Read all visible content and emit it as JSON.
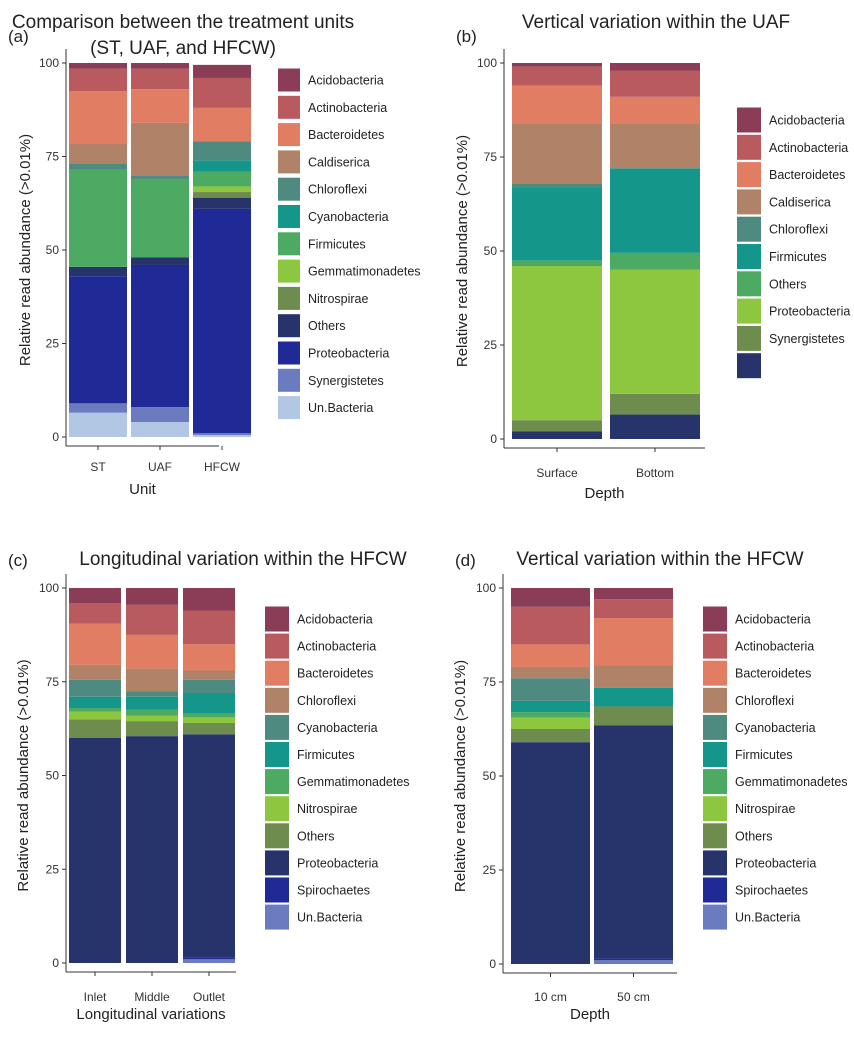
{
  "colors": {
    "Acidobacteria": "#8B3C57",
    "Actinobacteria": "#B85A5E",
    "Bacteroidetes": "#E07D62",
    "Caldiserica": "#B08268",
    "Chloroflexi": "#B08268",
    "Cyanobacteria": "#4F8A80",
    "Firmicutes": "#15968A",
    "Gemmatimonadetes": "#4CAA62",
    "Nitrospirae": "#8DC63F",
    "Others": "#6E8C4E",
    "Proteobacteria": "#27346B",
    "Synergistetes": "#6A7BBF",
    "Spirochaetes": "#202A96",
    "Un.Bacteria": "#B2C7E3"
  },
  "chart_data": [
    {
      "type": "bar",
      "stacked": true,
      "panel_label": "(a)",
      "title": "Comparison between the treatment units (ST, UAF, and HFCW)",
      "title_lines": [
        "Comparison between the treatment units",
        "(ST, UAF, and HFCW)"
      ],
      "xlabel": "Unit",
      "ylabel": "Relative read abundance (>0.01%)",
      "ylim": [
        0,
        100
      ],
      "yticks": [
        0,
        25,
        50,
        75,
        100
      ],
      "categories": [
        "ST",
        "UAF",
        "HFCW"
      ],
      "legend": [
        "Acidobacteria",
        "Actinobacteria",
        "Bacteroidetes",
        "Caldiserica",
        "Chloroflexi",
        "Cyanobacteria",
        "Firmicutes",
        "Gemmatimonadetes",
        "Nitrospirae",
        "Others",
        "Proteobacteria",
        "Synergistetes",
        "Un.Bacteria"
      ],
      "legend_colors": [
        "#8B3C57",
        "#B85A5E",
        "#E07D62",
        "#B08268",
        "#4F8A80",
        "#15968A",
        "#4CAA62",
        "#8DC63F",
        "#6E8C4E",
        "#27346B",
        "#202A96",
        "#6A7BBF",
        "#B2C7E3"
      ],
      "series": [
        {
          "name": "Un.Bacteria",
          "color": "#B2C7E3",
          "values": [
            6.5,
            4,
            0.5
          ]
        },
        {
          "name": "Synergistetes",
          "color": "#6A7BBF",
          "values": [
            2.5,
            4,
            0.5
          ]
        },
        {
          "name": "Proteobacteria",
          "color": "#202A96",
          "values": [
            34,
            38,
            60
          ]
        },
        {
          "name": "Others",
          "color": "#27346B",
          "values": [
            2.5,
            2,
            3
          ]
        },
        {
          "name": "Nitrospirae",
          "color": "#6E8C4E",
          "values": [
            0,
            0,
            1.5
          ]
        },
        {
          "name": "Gemmatimonadetes",
          "color": "#8DC63F",
          "values": [
            0,
            0,
            1.5
          ]
        },
        {
          "name": "Firmicutes",
          "color": "#4CAA62",
          "values": [
            26,
            21,
            4
          ]
        },
        {
          "name": "Cyanobacteria",
          "color": "#15968A",
          "values": [
            0,
            0,
            3
          ]
        },
        {
          "name": "Chloroflexi",
          "color": "#4F8A80",
          "values": [
            1.5,
            1,
            5
          ]
        },
        {
          "name": "Caldiserica",
          "color": "#B08268",
          "values": [
            5.5,
            14,
            0
          ]
        },
        {
          "name": "Bacteroidetes",
          "color": "#E07D62",
          "values": [
            14,
            9,
            9
          ]
        },
        {
          "name": "Actinobacteria",
          "color": "#B85A5E",
          "values": [
            6,
            5.5,
            8
          ]
        },
        {
          "name": "Acidobacteria",
          "color": "#8B3C57",
          "values": [
            1.5,
            1.5,
            3.5
          ]
        }
      ]
    },
    {
      "type": "bar",
      "stacked": true,
      "panel_label": "(b)",
      "title": "Vertical variation within the UAF",
      "title_lines": [
        "Vertical variation within the UAF"
      ],
      "xlabel": "Depth",
      "ylabel": "Relative read abundance (>0.01%)",
      "ylim": [
        0,
        100
      ],
      "yticks": [
        0,
        25,
        50,
        75,
        100
      ],
      "categories": [
        "Surface",
        "Bottom"
      ],
      "legend": [
        "Acidobacteria",
        "Actinobacteria",
        "Bacteroidetes",
        "Caldiserica",
        "Chloroflexi",
        "Firmicutes",
        "Others",
        "Proteobacteria",
        "Synergistetes",
        ""
      ],
      "legend_colors": [
        "#8B3C57",
        "#B85A5E",
        "#E07D62",
        "#B08268",
        "#4F8A80",
        "#15968A",
        "#4CAA62",
        "#8DC63F",
        "#6E8C4E",
        "#27346B"
      ],
      "series": [
        {
          "name": "",
          "color": "#27346B",
          "values": [
            2,
            6.5
          ]
        },
        {
          "name": "Synergistetes",
          "color": "#6E8C4E",
          "values": [
            3,
            5.5
          ]
        },
        {
          "name": "Proteobacteria",
          "color": "#8DC63F",
          "values": [
            41,
            33
          ]
        },
        {
          "name": "Others",
          "color": "#4CAA62",
          "values": [
            1.5,
            4.5
          ]
        },
        {
          "name": "Firmicutes",
          "color": "#15968A",
          "values": [
            19.5,
            22.5
          ]
        },
        {
          "name": "Chloroflexi",
          "color": "#4F8A80",
          "values": [
            1,
            0
          ]
        },
        {
          "name": "Caldiserica",
          "color": "#B08268",
          "values": [
            16,
            12
          ]
        },
        {
          "name": "Bacteroidetes",
          "color": "#E07D62",
          "values": [
            10,
            7
          ]
        },
        {
          "name": "Actinobacteria",
          "color": "#B85A5E",
          "values": [
            5,
            7
          ]
        },
        {
          "name": "Acidobacteria",
          "color": "#8B3C57",
          "values": [
            1,
            2
          ]
        }
      ]
    },
    {
      "type": "bar",
      "stacked": true,
      "panel_label": "(c)",
      "title": "Longitudinal variation within the HFCW",
      "title_lines": [
        "Longitudinal variation within the HFCW"
      ],
      "xlabel": "Longitudinal variations",
      "ylabel": "Relative read abundance (>0.01%)",
      "ylim": [
        0,
        100
      ],
      "yticks": [
        0,
        25,
        50,
        75,
        100
      ],
      "categories": [
        "Inlet",
        "Middle",
        "Outlet"
      ],
      "legend": [
        "Acidobacteria",
        "Actinobacteria",
        "Bacteroidetes",
        "Chloroflexi",
        "Cyanobacteria",
        "Firmicutes",
        "Gemmatimonadetes",
        "Nitrospirae",
        "Others",
        "Proteobacteria",
        "Spirochaetes",
        "Un.Bacteria"
      ],
      "legend_colors": [
        "#8B3C57",
        "#B85A5E",
        "#E07D62",
        "#B08268",
        "#4F8A80",
        "#15968A",
        "#4CAA62",
        "#8DC63F",
        "#6E8C4E",
        "#27346B",
        "#202A96",
        "#6A7BBF"
      ],
      "series": [
        {
          "name": "Un.Bacteria",
          "color": "#6A7BBF",
          "values": [
            0,
            0,
            1
          ]
        },
        {
          "name": "Spirochaetes",
          "color": "#202A96",
          "values": [
            0,
            0,
            0.5
          ]
        },
        {
          "name": "Proteobacteria",
          "color": "#27346B",
          "values": [
            60,
            60.5,
            59.5
          ]
        },
        {
          "name": "Others",
          "color": "#6E8C4E",
          "values": [
            5,
            4,
            3
          ]
        },
        {
          "name": "Nitrospirae",
          "color": "#8DC63F",
          "values": [
            2,
            1.5,
            1.5
          ]
        },
        {
          "name": "Gemmatimonadetes",
          "color": "#4CAA62",
          "values": [
            1,
            1.5,
            1
          ]
        },
        {
          "name": "Firmicutes",
          "color": "#15968A",
          "values": [
            3,
            3.5,
            5.5
          ]
        },
        {
          "name": "Cyanobacteria",
          "color": "#4F8A80",
          "values": [
            4.5,
            1.5,
            3.5
          ]
        },
        {
          "name": "Chloroflexi",
          "color": "#B08268",
          "values": [
            4,
            6,
            2.5
          ]
        },
        {
          "name": "Bacteroidetes",
          "color": "#E07D62",
          "values": [
            11,
            9,
            7
          ]
        },
        {
          "name": "Actinobacteria",
          "color": "#B85A5E",
          "values": [
            5.5,
            8,
            9
          ]
        },
        {
          "name": "Acidobacteria",
          "color": "#8B3C57",
          "values": [
            4,
            4.5,
            6
          ]
        }
      ]
    },
    {
      "type": "bar",
      "stacked": true,
      "panel_label": "(d)",
      "title": "Vertical variation within the HFCW",
      "title_lines": [
        "Vertical variation within the HFCW"
      ],
      "xlabel": "Depth",
      "ylabel": "Relative read abundance (>0.01%)",
      "ylim": [
        0,
        100
      ],
      "yticks": [
        0,
        25,
        50,
        75,
        100
      ],
      "categories": [
        "10 cm",
        "50 cm"
      ],
      "legend": [
        "Acidobacteria",
        "Actinobacteria",
        "Bacteroidetes",
        "Chloroflexi",
        "Cyanobacteria",
        "Firmicutes",
        "Gemmatimonadetes",
        "Nitrospirae",
        "Others",
        "Proteobacteria",
        "Spirochaetes",
        "Un.Bacteria"
      ],
      "legend_colors": [
        "#8B3C57",
        "#B85A5E",
        "#E07D62",
        "#B08268",
        "#4F8A80",
        "#15968A",
        "#4CAA62",
        "#8DC63F",
        "#6E8C4E",
        "#27346B",
        "#202A96",
        "#6A7BBF"
      ],
      "series": [
        {
          "name": "Un.Bacteria",
          "color": "#6A7BBF",
          "values": [
            0,
            1
          ]
        },
        {
          "name": "Spirochaetes",
          "color": "#202A96",
          "values": [
            0,
            0.5
          ]
        },
        {
          "name": "Proteobacteria",
          "color": "#27346B",
          "values": [
            59,
            62
          ]
        },
        {
          "name": "Others",
          "color": "#6E8C4E",
          "values": [
            3.5,
            5
          ]
        },
        {
          "name": "Nitrospirae",
          "color": "#8DC63F",
          "values": [
            3,
            0
          ]
        },
        {
          "name": "Gemmatimonadetes",
          "color": "#4CAA62",
          "values": [
            1.5,
            0
          ]
        },
        {
          "name": "Firmicutes",
          "color": "#15968A",
          "values": [
            3,
            5
          ]
        },
        {
          "name": "Cyanobacteria",
          "color": "#4F8A80",
          "values": [
            6,
            0
          ]
        },
        {
          "name": "Chloroflexi",
          "color": "#B08268",
          "values": [
            3,
            6
          ]
        },
        {
          "name": "Bacteroidetes",
          "color": "#E07D62",
          "values": [
            6,
            12.5
          ]
        },
        {
          "name": "Actinobacteria",
          "color": "#B85A5E",
          "values": [
            10,
            5
          ]
        },
        {
          "name": "Acidobacteria",
          "color": "#8B3C57",
          "values": [
            5,
            3
          ]
        }
      ]
    }
  ]
}
